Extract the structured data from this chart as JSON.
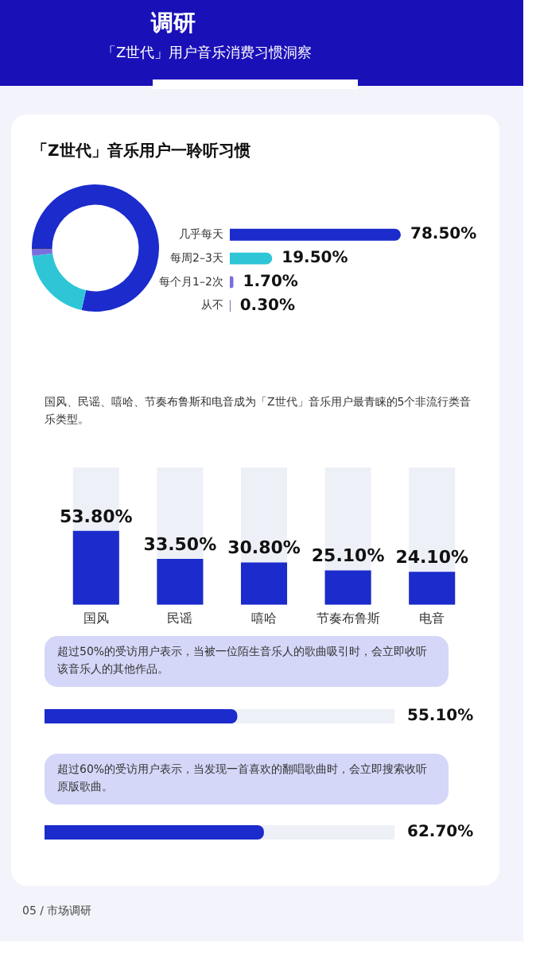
{
  "chart_data": [
    {
      "type": "donut",
      "title": "「Z世代」音乐用户一聆听习惯",
      "annotations": [
        "调研",
        "「Z世代」用户音乐消费习惯洞察",
        "05 / 市场调研"
      ],
      "categories": [
        null,
        null,
        null,
        null
      ],
      "values": [
        78.5,
        19.5,
        1.7,
        0.3
      ],
      "colors": [
        "#1b2bcc",
        "#2ec6d6",
        "#7a6ee0",
        "#2a2f8a"
      ],
      "legend": false
    },
    {
      "type": "bar",
      "orientation": "horizontal",
      "categories": [
        "几乎每天",
        "每周2–3天",
        "每个月1–2次",
        "从不"
      ],
      "values": [
        78.5,
        19.5,
        1.7,
        0.3
      ],
      "value_labels": [
        "78.50%",
        "19.50%",
        "1.70%",
        "0.30%"
      ],
      "colors": [
        "#1b2bcc",
        "#2ec6d6",
        "#7a6ee0",
        "#2a2f8a"
      ],
      "tick_labels": "y",
      "grid": false,
      "legend": false
    },
    {
      "type": "bar",
      "subtitle": "国风、民谣、嘻哈、节奏布鲁斯和电音成为「Z世代」音乐用户最青睐的5个非流行类音乐类型。",
      "categories": [
        "国风",
        "民谣",
        "嘻哈",
        "节奏布鲁斯",
        "电音"
      ],
      "values": [
        53.8,
        33.5,
        30.8,
        25.1,
        24.1
      ],
      "value_labels": [
        "53.80%",
        "33.50%",
        "30.80%",
        "25.10%",
        "24.10%"
      ],
      "color": "#1b2bcc",
      "ylim": [
        0,
        100
      ],
      "tick_labels": "x",
      "grid": false,
      "legend": false
    },
    {
      "type": "bar",
      "orientation": "horizontal",
      "annotations": [
        "超过50%的受访用户表示，当被一位陌生音乐人的歌曲吸引时，会立即收听该音乐人的其他作品。",
        "超过60%的受访用户表示，当发现一首喜欢的翻唱歌曲时，会立即搜索收听原版歌曲。"
      ],
      "categories": [
        null,
        null
      ],
      "values": [
        55.1,
        62.7
      ],
      "value_labels": [
        "55.10%",
        "62.70%"
      ],
      "color": "#1b2bcc",
      "xlim": [
        0,
        100
      ],
      "tick_labels": false,
      "grid": false,
      "legend": false
    }
  ]
}
